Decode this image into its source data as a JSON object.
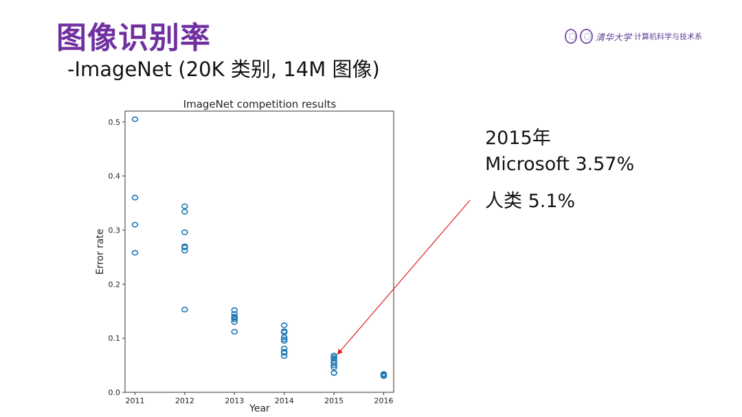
{
  "slide": {
    "title": "图像识别率",
    "subtitle": "-ImageNet (20K 类别, 14M 图像)"
  },
  "logo": {
    "university": "清华大学",
    "department": "计算机科学与技术系"
  },
  "annotation": {
    "year": "2015年",
    "microsoft": "Microsoft 3.57%",
    "human": "人类 5.1%"
  },
  "colors": {
    "title": "#7030a0",
    "marker": "#1f77b4",
    "arrow": "#e31a1c"
  },
  "chart_data": {
    "type": "scatter",
    "title": "ImageNet competition results",
    "xlabel": "Year",
    "ylabel": "Error rate",
    "xlim": [
      2010.8,
      2016.2
    ],
    "ylim": [
      0,
      0.52
    ],
    "x_ticks": [
      2011,
      2012,
      2013,
      2014,
      2015,
      2016
    ],
    "y_ticks": [
      0.0,
      0.1,
      0.2,
      0.3,
      0.4,
      0.5
    ],
    "y_tick_labels": [
      "0.0",
      "0.1",
      "0.2",
      "0.3",
      "0.4",
      "0.5"
    ],
    "grid": false,
    "marker": "open-circle",
    "series": [
      {
        "x": [
          2011,
          2011,
          2011,
          2011,
          2012,
          2012,
          2012,
          2012,
          2012,
          2012,
          2012,
          2013,
          2013,
          2013,
          2013,
          2013,
          2013,
          2013,
          2014,
          2014,
          2014,
          2014,
          2014,
          2014,
          2014,
          2014,
          2014,
          2014,
          2015,
          2015,
          2015,
          2015,
          2015,
          2015,
          2015,
          2015,
          2015,
          2016,
          2016,
          2016
        ],
        "y": [
          0.505,
          0.36,
          0.31,
          0.258,
          0.344,
          0.334,
          0.296,
          0.27,
          0.268,
          0.262,
          0.153,
          0.152,
          0.145,
          0.14,
          0.138,
          0.135,
          0.13,
          0.112,
          0.124,
          0.113,
          0.111,
          0.102,
          0.098,
          0.095,
          0.081,
          0.075,
          0.073,
          0.067,
          0.068,
          0.065,
          0.062,
          0.058,
          0.055,
          0.05,
          0.046,
          0.036,
          0.0357,
          0.034,
          0.032,
          0.03
        ]
      }
    ],
    "arrow_target": {
      "x": 2015,
      "y": 0.0665
    }
  }
}
